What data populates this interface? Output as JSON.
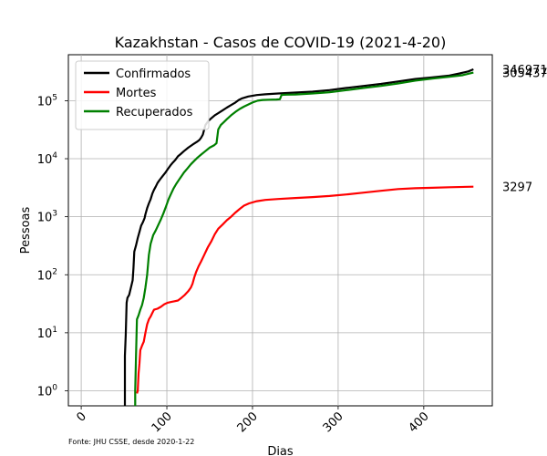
{
  "chart_data": {
    "type": "line",
    "title": "Kazakhstan - Casos de COVID-19 (2021-4-20)",
    "xlabel": "Dias",
    "ylabel": "Pessoas",
    "yscale": "log",
    "xlim": [
      -15,
      480
    ],
    "ylim": [
      0.55,
      620000
    ],
    "xticks": [
      0,
      100,
      200,
      300,
      400
    ],
    "xtick_labels": [
      "0",
      "100",
      "200",
      "300",
      "400"
    ],
    "yticks": [
      1,
      10,
      100,
      1000,
      10000,
      100000
    ],
    "ytick_labels": [
      {
        "base": "10",
        "exp": "0"
      },
      {
        "base": "10",
        "exp": "1"
      },
      {
        "base": "10",
        "exp": "2"
      },
      {
        "base": "10",
        "exp": "3"
      },
      {
        "base": "10",
        "exp": "4"
      },
      {
        "base": "10",
        "exp": "5"
      }
    ],
    "grid": true,
    "legend_position": "top-left",
    "source_note": "Fonte: JHU CSSE, desde 2020-1-22",
    "series": [
      {
        "name": "Confirmados",
        "color": "#000000",
        "end_label": "346971",
        "points": [
          [
            51,
            0.55
          ],
          [
            51,
            4
          ],
          [
            52,
            9
          ],
          [
            53,
            33
          ],
          [
            54,
            40
          ],
          [
            56,
            45
          ],
          [
            58,
            60
          ],
          [
            60,
            80
          ],
          [
            61,
            130
          ],
          [
            62,
            250
          ],
          [
            64,
            320
          ],
          [
            66,
            430
          ],
          [
            68,
            550
          ],
          [
            70,
            700
          ],
          [
            72,
            800
          ],
          [
            74,
            950
          ],
          [
            75,
            1100
          ],
          [
            77,
            1400
          ],
          [
            79,
            1700
          ],
          [
            81,
            2000
          ],
          [
            83,
            2500
          ],
          [
            85,
            2900
          ],
          [
            87,
            3300
          ],
          [
            89,
            3800
          ],
          [
            91,
            4200
          ],
          [
            93,
            4600
          ],
          [
            95,
            5000
          ],
          [
            98,
            5700
          ],
          [
            101,
            6600
          ],
          [
            104,
            7600
          ],
          [
            107,
            8600
          ],
          [
            110,
            9600
          ],
          [
            113,
            11000
          ],
          [
            116,
            12000
          ],
          [
            120,
            13500
          ],
          [
            125,
            15500
          ],
          [
            130,
            17500
          ],
          [
            135,
            19500
          ],
          [
            138,
            21000
          ],
          [
            140,
            23000
          ],
          [
            142,
            26000
          ],
          [
            145,
            38000
          ],
          [
            148,
            44000
          ],
          [
            152,
            50000
          ],
          [
            156,
            56000
          ],
          [
            160,
            61000
          ],
          [
            165,
            68000
          ],
          [
            170,
            76000
          ],
          [
            175,
            84000
          ],
          [
            180,
            93000
          ],
          [
            184,
            103000
          ],
          [
            188,
            110000
          ],
          [
            195,
            118000
          ],
          [
            205,
            125000
          ],
          [
            215,
            129000
          ],
          [
            230,
            133000
          ],
          [
            250,
            138000
          ],
          [
            270,
            143000
          ],
          [
            290,
            152000
          ],
          [
            310,
            166000
          ],
          [
            330,
            180000
          ],
          [
            350,
            195000
          ],
          [
            370,
            215000
          ],
          [
            390,
            237000
          ],
          [
            410,
            252000
          ],
          [
            430,
            272000
          ],
          [
            442,
            295000
          ],
          [
            452,
            320000
          ],
          [
            458,
            346971
          ]
        ]
      },
      {
        "name": "Mortes",
        "color": "#ff0000",
        "end_label": "3297",
        "points": [
          [
            65,
            0.9
          ],
          [
            66,
            1
          ],
          [
            67,
            2
          ],
          [
            68,
            3
          ],
          [
            69,
            5
          ],
          [
            71,
            6
          ],
          [
            73,
            7
          ],
          [
            75,
            10
          ],
          [
            77,
            14
          ],
          [
            79,
            17
          ],
          [
            81,
            19
          ],
          [
            83,
            22
          ],
          [
            85,
            25
          ],
          [
            89,
            26
          ],
          [
            93,
            28
          ],
          [
            97,
            31
          ],
          [
            101,
            33
          ],
          [
            105,
            34
          ],
          [
            109,
            35
          ],
          [
            113,
            36
          ],
          [
            117,
            40
          ],
          [
            121,
            45
          ],
          [
            125,
            52
          ],
          [
            128,
            60
          ],
          [
            130,
            70
          ],
          [
            132,
            90
          ],
          [
            134,
            110
          ],
          [
            137,
            140
          ],
          [
            140,
            170
          ],
          [
            143,
            210
          ],
          [
            146,
            260
          ],
          [
            148,
            300
          ],
          [
            152,
            380
          ],
          [
            156,
            500
          ],
          [
            160,
            620
          ],
          [
            165,
            730
          ],
          [
            170,
            870
          ],
          [
            175,
            1000
          ],
          [
            180,
            1180
          ],
          [
            185,
            1360
          ],
          [
            190,
            1550
          ],
          [
            196,
            1700
          ],
          [
            205,
            1850
          ],
          [
            215,
            1950
          ],
          [
            230,
            2020
          ],
          [
            250,
            2100
          ],
          [
            270,
            2180
          ],
          [
            290,
            2280
          ],
          [
            310,
            2420
          ],
          [
            330,
            2600
          ],
          [
            350,
            2800
          ],
          [
            370,
            3000
          ],
          [
            390,
            3100
          ],
          [
            410,
            3160
          ],
          [
            430,
            3220
          ],
          [
            458,
            3297
          ]
        ]
      },
      {
        "name": "Recuperados",
        "color": "#008000",
        "end_label": "305437",
        "points": [
          [
            63,
            0.55
          ],
          [
            63,
            1
          ],
          [
            64,
            4
          ],
          [
            65,
            17
          ],
          [
            67,
            20
          ],
          [
            69,
            25
          ],
          [
            71,
            30
          ],
          [
            73,
            40
          ],
          [
            75,
            60
          ],
          [
            77,
            100
          ],
          [
            79,
            220
          ],
          [
            81,
            340
          ],
          [
            84,
            480
          ],
          [
            87,
            580
          ],
          [
            90,
            720
          ],
          [
            93,
            900
          ],
          [
            96,
            1150
          ],
          [
            99,
            1500
          ],
          [
            102,
            2000
          ],
          [
            105,
            2500
          ],
          [
            108,
            3100
          ],
          [
            111,
            3700
          ],
          [
            114,
            4300
          ],
          [
            117,
            5000
          ],
          [
            120,
            5800
          ],
          [
            124,
            6800
          ],
          [
            128,
            8000
          ],
          [
            132,
            9200
          ],
          [
            136,
            10500
          ],
          [
            140,
            11800
          ],
          [
            145,
            13500
          ],
          [
            150,
            15500
          ],
          [
            155,
            17000
          ],
          [
            158,
            18500
          ],
          [
            160,
            32000
          ],
          [
            163,
            38000
          ],
          [
            166,
            42000
          ],
          [
            170,
            48000
          ],
          [
            175,
            56000
          ],
          [
            180,
            64000
          ],
          [
            185,
            72000
          ],
          [
            190,
            79000
          ],
          [
            195,
            86000
          ],
          [
            200,
            93000
          ],
          [
            206,
            100000
          ],
          [
            212,
            103000
          ],
          [
            220,
            104000
          ],
          [
            228,
            105000
          ],
          [
            232,
            106000
          ],
          [
            234,
            126000
          ],
          [
            240,
            127000
          ],
          [
            250,
            128000
          ],
          [
            270,
            133000
          ],
          [
            290,
            140000
          ],
          [
            310,
            152000
          ],
          [
            330,
            166000
          ],
          [
            350,
            180000
          ],
          [
            370,
            198000
          ],
          [
            390,
            222000
          ],
          [
            410,
            240000
          ],
          [
            430,
            258000
          ],
          [
            445,
            275000
          ],
          [
            458,
            305437
          ]
        ]
      }
    ]
  }
}
